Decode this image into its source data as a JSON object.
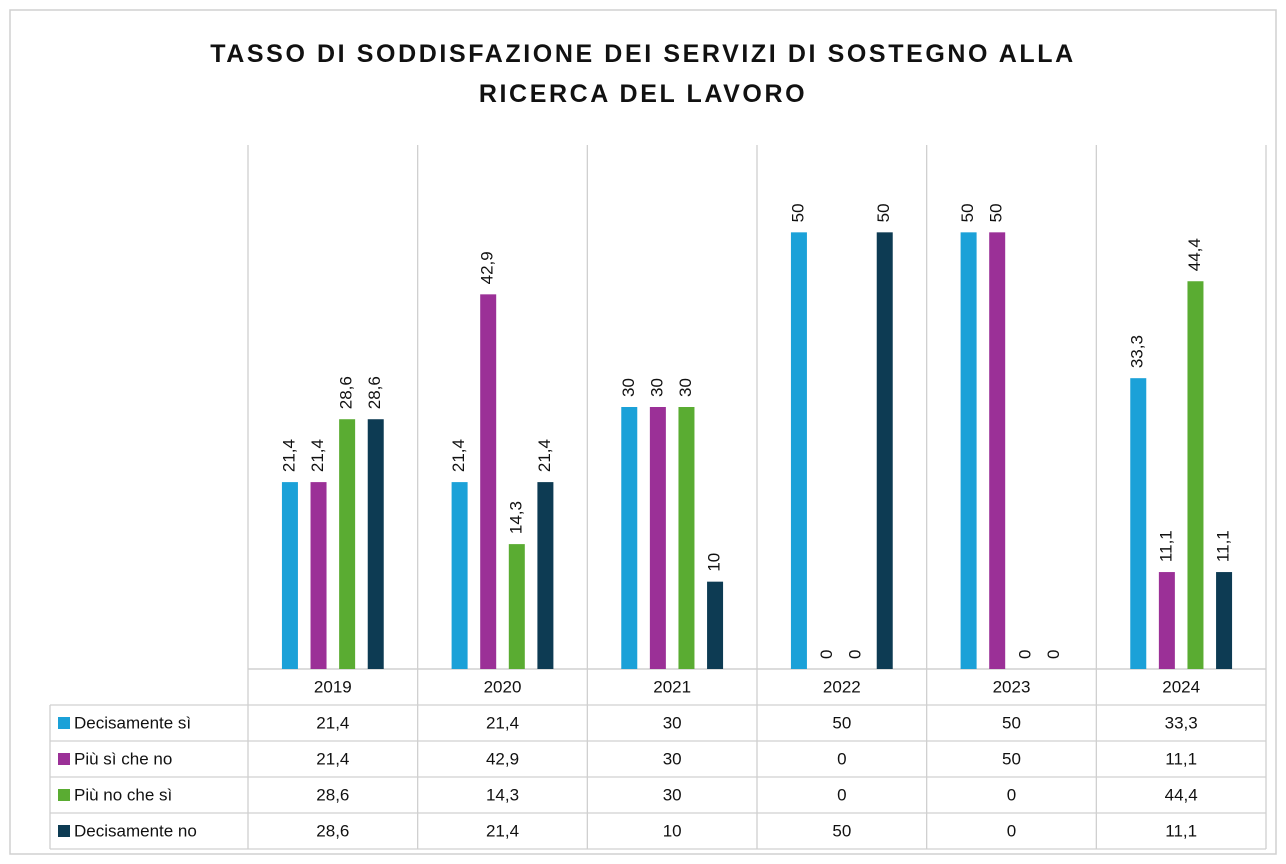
{
  "chart_data": {
    "type": "bar",
    "title": "TASSO DI SODDISFAZIONE DEI SERVIZI DI SOSTEGNO ALLA RICERCA DEL LAVORO",
    "categories": [
      "2019",
      "2020",
      "2021",
      "2022",
      "2023",
      "2024"
    ],
    "ylim": [
      0,
      60
    ],
    "series": [
      {
        "name": "Decisamente sì",
        "color": "#1ba1d8",
        "values": [
          21.4,
          21.4,
          30,
          50,
          50,
          33.3
        ],
        "value_labels": [
          "21,4",
          "21,4",
          "30",
          "50",
          "50",
          "33,3"
        ]
      },
      {
        "name": "Più sì che no",
        "color": "#9b3097",
        "values": [
          21.4,
          42.9,
          30,
          0,
          50,
          11.1
        ],
        "value_labels": [
          "21,4",
          "42,9",
          "30",
          "0",
          "50",
          "11,1"
        ]
      },
      {
        "name": "Più no che sì",
        "color": "#5aac32",
        "values": [
          28.6,
          14.3,
          30,
          0,
          0,
          44.4
        ],
        "value_labels": [
          "28,6",
          "14,3",
          "30",
          "0",
          "0",
          "44,4"
        ]
      },
      {
        "name": "Decisamente no",
        "color": "#0d3b53",
        "values": [
          28.6,
          21.4,
          10,
          50,
          0,
          11.1
        ],
        "value_labels": [
          "28,6",
          "21,4",
          "10",
          "50",
          "0",
          "11,1"
        ]
      }
    ]
  }
}
